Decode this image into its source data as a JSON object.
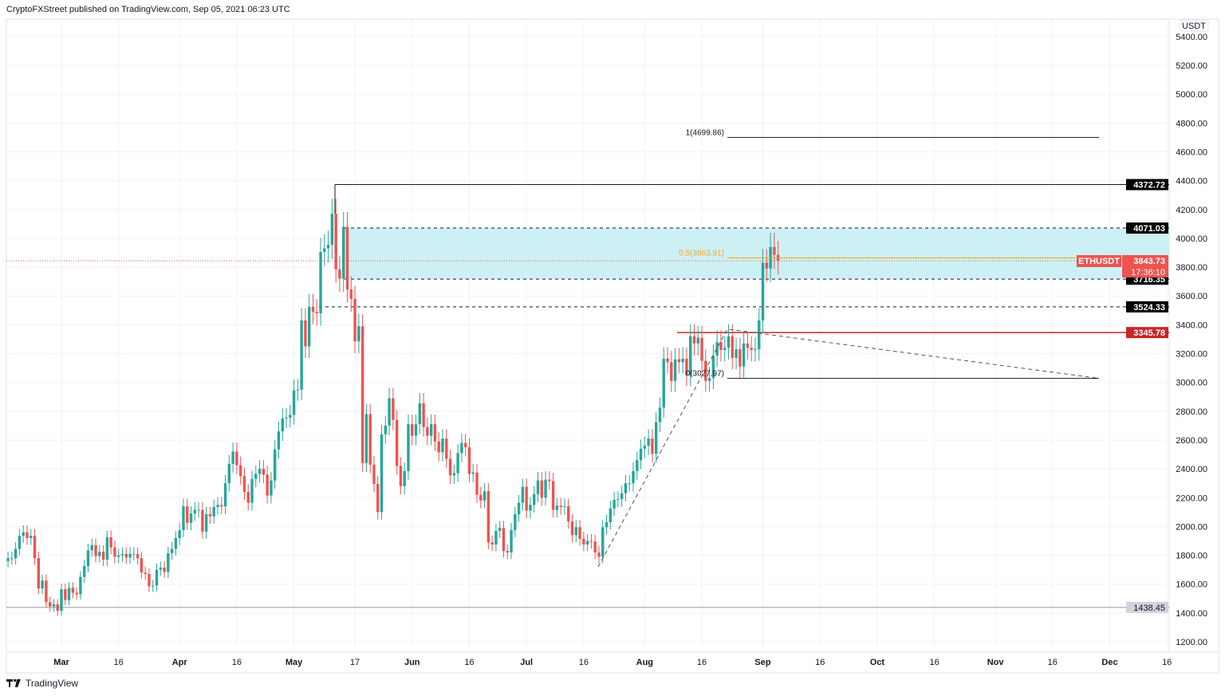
{
  "header": {
    "text": "CryptoFXStreet published on TradingView.com, Sep 05, 2021 06:23 UTC"
  },
  "footer": {
    "brand": "TradingView"
  },
  "colors": {
    "up": "#26a69a",
    "down": "#ef5350",
    "zone": "#cdf0f5",
    "fib_mid": "#f5a623",
    "support_red": "#c62828"
  },
  "chart_data": {
    "type": "candlestick",
    "symbol": "ETHUSDT",
    "currency": "USDT",
    "start_date": "2021-02-15",
    "closes": [
      1780,
      1780,
      1845,
      1935,
      1960,
      1920,
      1935,
      1780,
      1570,
      1625,
      1475,
      1445,
      1460,
      1415,
      1565,
      1490,
      1575,
      1540,
      1530,
      1650,
      1725,
      1835,
      1870,
      1795,
      1825,
      1770,
      1925,
      1855,
      1790,
      1800,
      1810,
      1785,
      1810,
      1810,
      1780,
      1680,
      1670,
      1585,
      1590,
      1700,
      1715,
      1685,
      1815,
      1845,
      1920,
      1975,
      2140,
      2025,
      2090,
      2115,
      2115,
      1965,
      2085,
      2070,
      2135,
      2150,
      2140,
      2300,
      2435,
      2520,
      2425,
      2350,
      2240,
      2165,
      2330,
      2365,
      2400,
      2360,
      2215,
      2320,
      2535,
      2660,
      2750,
      2755,
      2775,
      2945,
      2950,
      3430,
      3250,
      3525,
      3490,
      3480,
      3905,
      3930,
      3955,
      4170,
      3785,
      3720,
      4080,
      3645,
      3580,
      3285,
      3390,
      2440,
      2780,
      2430,
      2295,
      2100,
      2640,
      2700,
      2890,
      2740,
      2420,
      2280,
      2385,
      2710,
      2630,
      2710,
      2855,
      2690,
      2630,
      2710,
      2590,
      2515,
      2610,
      2470,
      2355,
      2370,
      2510,
      2580,
      2550,
      2365,
      2375,
      2220,
      2180,
      2245,
      1890,
      1875,
      1970,
      1990,
      1830,
      1820,
      1975,
      2085,
      2165,
      2275,
      2110,
      2150,
      2225,
      2320,
      2200,
      2325,
      2315,
      2115,
      2145,
      2135,
      2140,
      2035,
      1940,
      1995,
      1915,
      1875,
      1900,
      1895,
      1820,
      1790,
      1995,
      2030,
      2125,
      2185,
      2190,
      2230,
      2300,
      2300,
      2385,
      2460,
      2540,
      2560,
      2610,
      2505,
      2725,
      2825,
      3165,
      3140,
      3010,
      3160,
      3140,
      3165,
      3050,
      3320,
      3270,
      3310,
      3150,
      3010,
      3030,
      3185,
      3280,
      3225,
      3240,
      3320,
      3170,
      3230,
      3110,
      3270,
      3240,
      3225,
      3230,
      3430,
      3830,
      3790,
      3940,
      3885,
      3844
    ],
    "y_ticks": [
      "5400.00",
      "5200.00",
      "5000.00",
      "4800.00",
      "4600.00",
      "4400.00",
      "4200.00",
      "4000.00",
      "3800.00",
      "3600.00",
      "3400.00",
      "3200.00",
      "3000.00",
      "2800.00",
      "2600.00",
      "2400.00",
      "2200.00",
      "2000.00",
      "1800.00",
      "1600.00",
      "1400.00",
      "1200.00"
    ],
    "x_ticks": [
      {
        "label": "Mar",
        "date": "2021-03-01",
        "major": true
      },
      {
        "label": "16",
        "date": "2021-03-16"
      },
      {
        "label": "Apr",
        "date": "2021-04-01",
        "major": true
      },
      {
        "label": "16",
        "date": "2021-04-16"
      },
      {
        "label": "May",
        "date": "2021-05-01",
        "major": true
      },
      {
        "label": "17",
        "date": "2021-05-17"
      },
      {
        "label": "Jun",
        "date": "2021-06-01",
        "major": true
      },
      {
        "label": "16",
        "date": "2021-06-16"
      },
      {
        "label": "Jul",
        "date": "2021-07-01",
        "major": true
      },
      {
        "label": "16",
        "date": "2021-07-16"
      },
      {
        "label": "Aug",
        "date": "2021-08-01",
        "major": true
      },
      {
        "label": "16",
        "date": "2021-08-16"
      },
      {
        "label": "Sep",
        "date": "2021-09-01",
        "major": true
      },
      {
        "label": "16",
        "date": "2021-09-16"
      },
      {
        "label": "Oct",
        "date": "2021-10-01",
        "major": true
      },
      {
        "label": "16",
        "date": "2021-10-16"
      },
      {
        "label": "Nov",
        "date": "2021-11-01",
        "major": true
      },
      {
        "label": "16",
        "date": "2021-11-16"
      },
      {
        "label": "Dec",
        "date": "2021-12-01",
        "major": true
      },
      {
        "label": "16",
        "date": "2021-12-16"
      }
    ],
    "ylim": [
      1150,
      5480
    ],
    "levels": [
      {
        "value": 4372.72,
        "label": "4372.72",
        "style": "solid",
        "color": "#131722"
      },
      {
        "value": 4071.03,
        "label": "4071.03",
        "style": "dashed",
        "color": "#131722"
      },
      {
        "value": 3716.35,
        "label": "3716.35",
        "style": "dashed",
        "color": "#131722"
      },
      {
        "value": 3524.33,
        "label": "3524.33",
        "style": "dashed",
        "color": "#131722"
      },
      {
        "value": 3345.78,
        "label": "3345.78",
        "style": "solid",
        "color": "#c62828"
      },
      {
        "value": 1438.45,
        "label": "1438.45",
        "style": "solid",
        "color": "#9598a1"
      }
    ],
    "fib": [
      {
        "level": "1",
        "value": 4699.86,
        "label": "1(4699.86)",
        "color": "#131722"
      },
      {
        "level": "0.5",
        "value": 3863.91,
        "label": "0.5(3863.91)",
        "color": "#f5a623"
      },
      {
        "level": "0",
        "value": 3027.97,
        "label": "0(3027.97)",
        "color": "#131722"
      }
    ],
    "last_price": {
      "symbol": "ETHUSDT",
      "value": "3843.73",
      "countdown": "17:36:10"
    },
    "currency_label": "USDT"
  }
}
